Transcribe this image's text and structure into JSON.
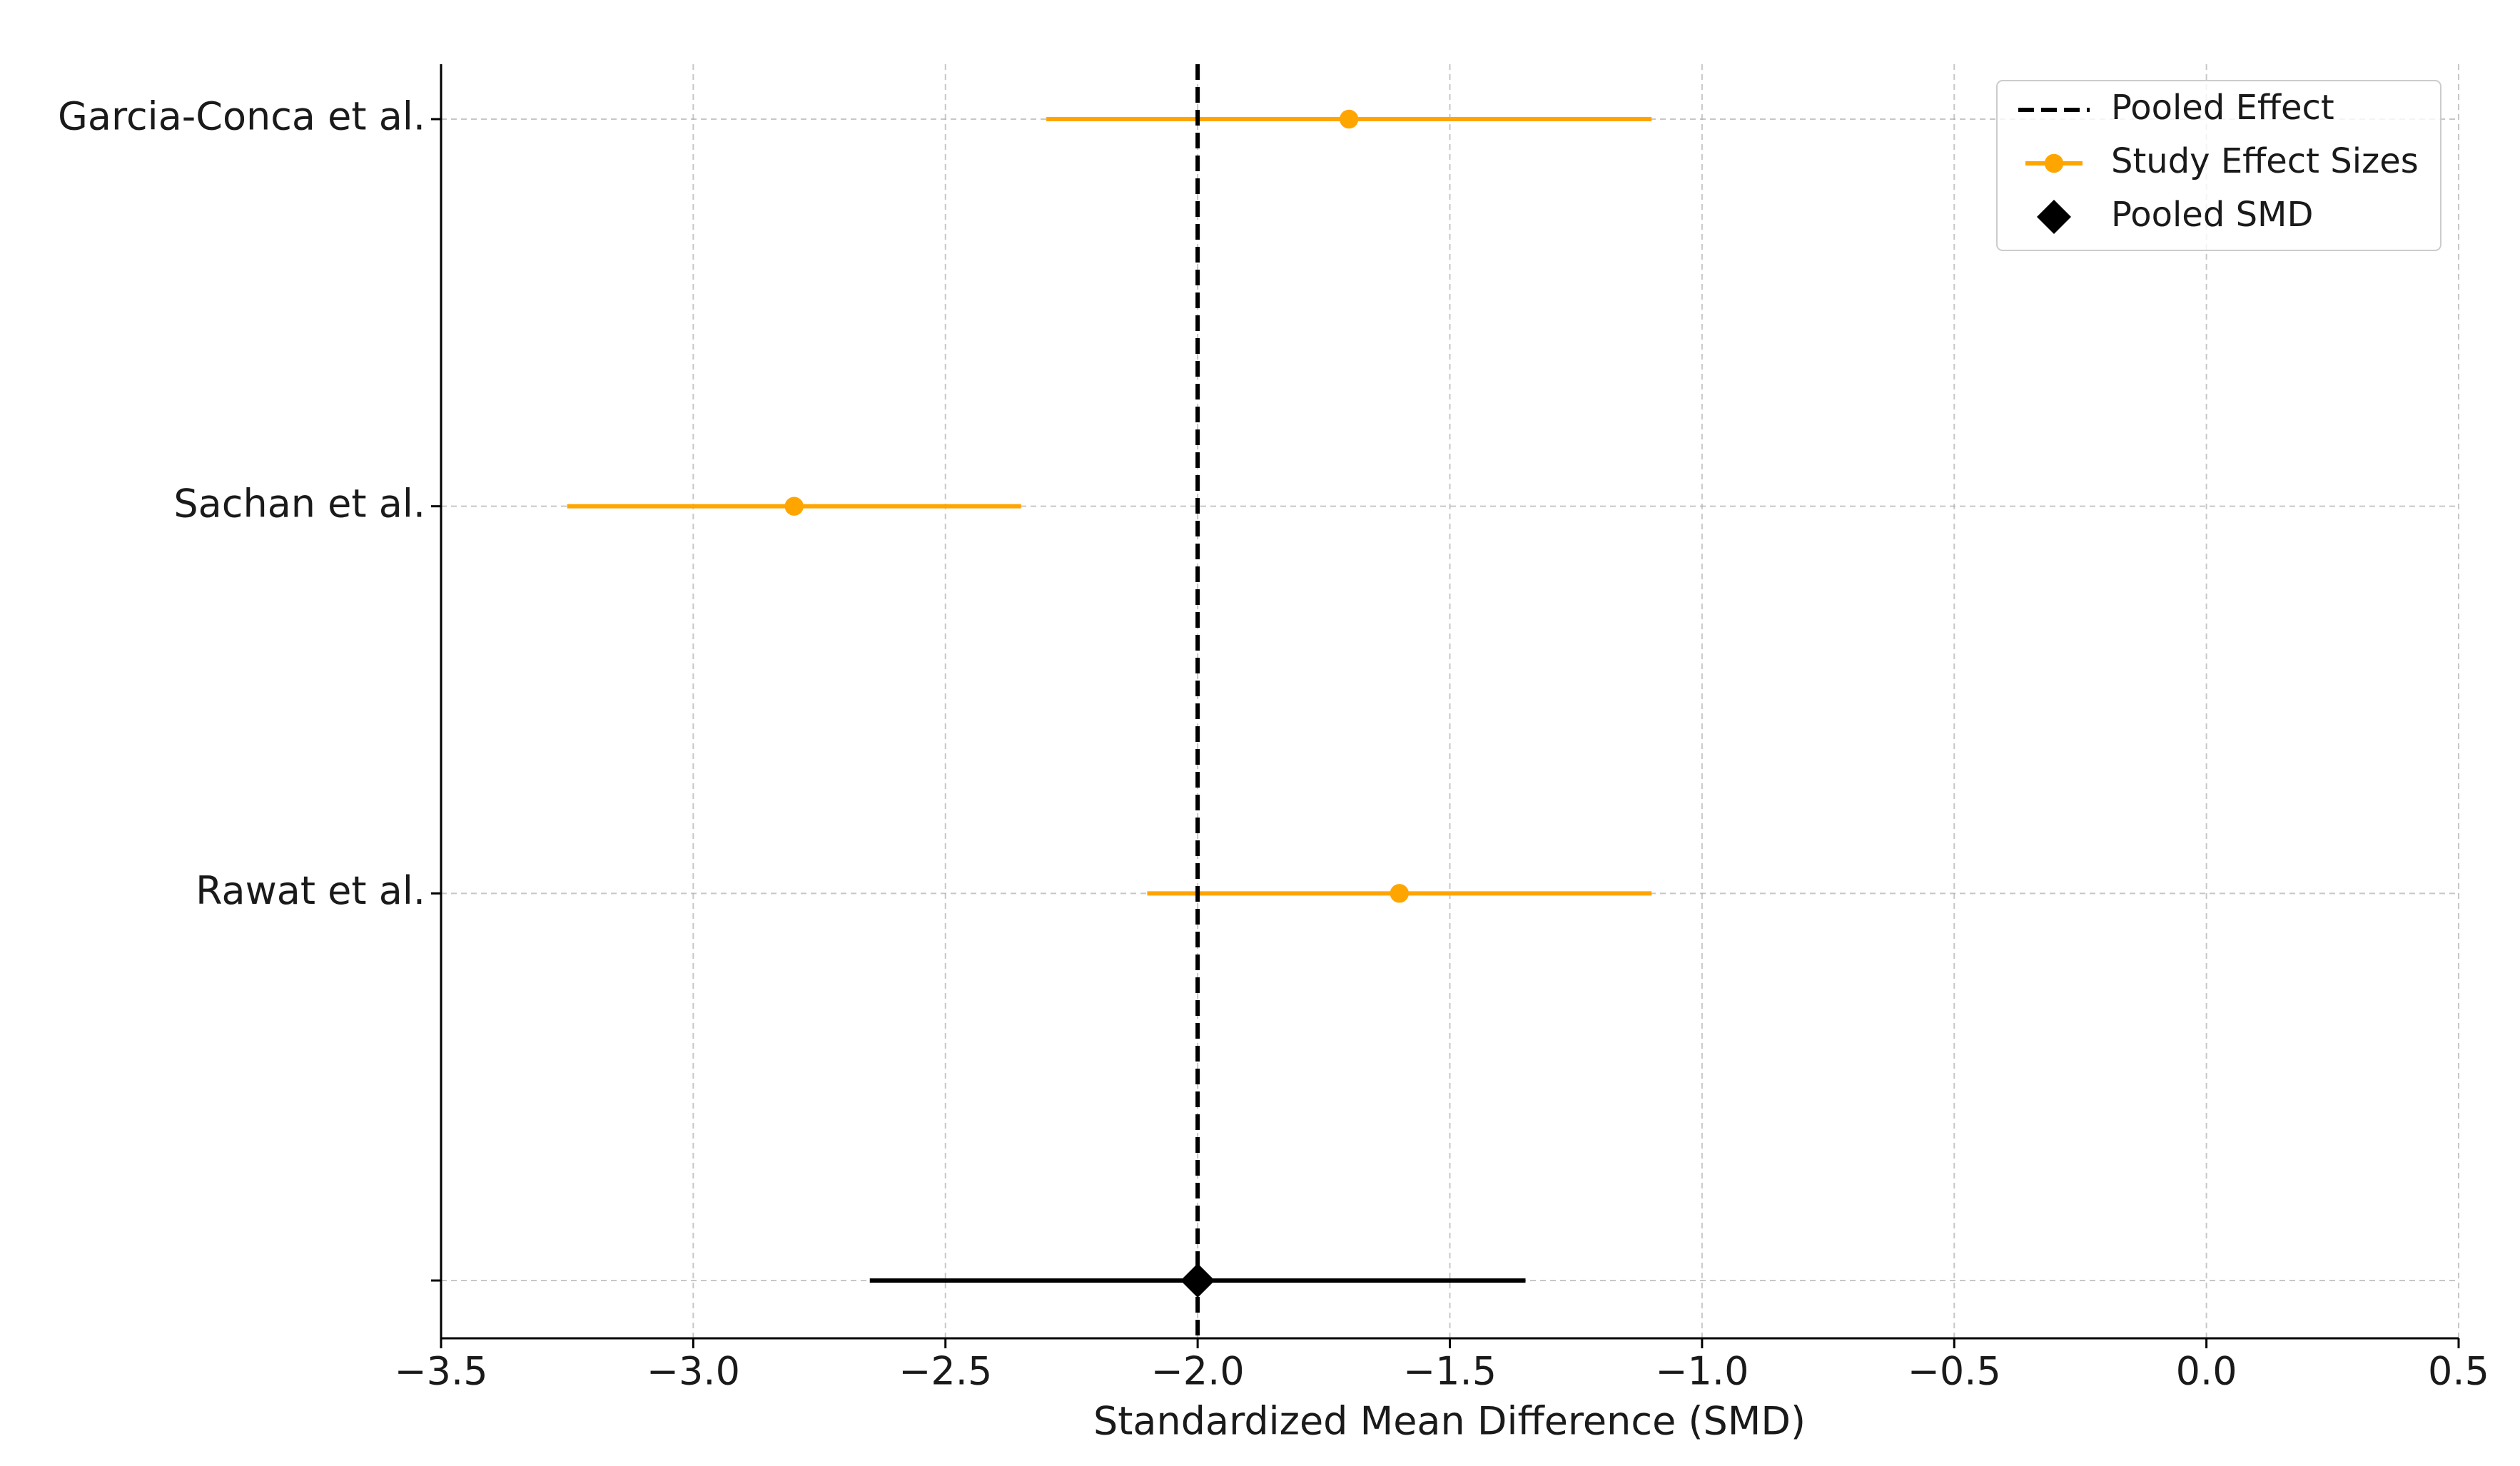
{
  "chart_data": {
    "type": "forest",
    "categories": [
      "Garcia-Conca et al.",
      "Sachan et al.",
      "Rawat et al.",
      null
    ],
    "series": [
      {
        "name": "Study Effect Sizes",
        "color": "#ffa500",
        "marker": "circle",
        "values": [
          -1.7,
          -2.8,
          -1.6,
          null
        ],
        "lower": [
          -2.3,
          -3.25,
          -2.1,
          null
        ],
        "upper": [
          -1.1,
          -2.35,
          -1.1,
          null
        ]
      },
      {
        "name": "Pooled SMD",
        "color": "#000000",
        "marker": "diamond",
        "values": [
          null,
          null,
          null,
          -2.0
        ],
        "lower": [
          null,
          null,
          null,
          -2.65
        ],
        "upper": [
          null,
          null,
          null,
          -1.35
        ]
      }
    ],
    "reference_line": {
      "name": "Pooled Effect",
      "value": -2.0,
      "color": "#000000",
      "style": "dashed"
    },
    "xlabel": "Standardized Mean Difference (SMD)",
    "xlim": [
      -3.5,
      0.5
    ],
    "xticks": [
      {
        "value": -3.5,
        "label": "−3.5"
      },
      {
        "value": -3.0,
        "label": "−3.0"
      },
      {
        "value": -2.5,
        "label": "−2.5"
      },
      {
        "value": -2.0,
        "label": "−2.0"
      },
      {
        "value": -1.5,
        "label": "−1.5"
      },
      {
        "value": -1.0,
        "label": "−1.0"
      },
      {
        "value": -0.5,
        "label": "−0.5"
      },
      {
        "value": 0,
        "label": "0.0"
      },
      0.5
    ],
    "grid": true,
    "legend": "upper right"
  }
}
